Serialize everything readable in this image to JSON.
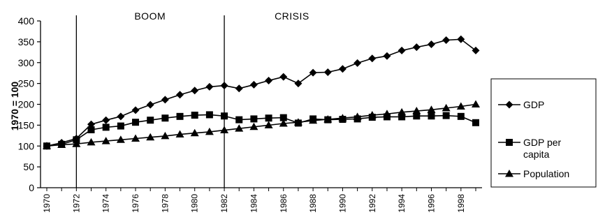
{
  "chart_data": {
    "type": "line",
    "ylabel": "1970 = 100",
    "xlabel": "",
    "ylim": [
      0,
      400
    ],
    "yticks": [
      "0",
      "50",
      "100",
      "150",
      "200",
      "250",
      "300",
      "350",
      "400"
    ],
    "x": [
      1970,
      1971,
      1972,
      1973,
      1974,
      1975,
      1976,
      1977,
      1978,
      1979,
      1980,
      1981,
      1982,
      1983,
      1984,
      1985,
      1986,
      1987,
      1988,
      1989,
      1990,
      1991,
      1992,
      1993,
      1994,
      1995,
      1996,
      1997,
      1998,
      1999
    ],
    "xticks": [
      "1970",
      "1972",
      "1974",
      "1976",
      "1978",
      "1980",
      "1982",
      "1984",
      "1986",
      "1988",
      "1990",
      "1992",
      "1994",
      "1996",
      "1998"
    ],
    "grid": false,
    "legend_position": "right",
    "series": [
      {
        "name": "GDP",
        "marker": "diamond",
        "values": [
          100,
          108,
          118,
          152,
          162,
          171,
          186,
          199,
          211,
          223,
          233,
          242,
          245,
          238,
          247,
          257,
          266,
          250,
          276,
          277,
          285,
          299,
          310,
          316,
          329,
          337,
          344,
          354,
          356,
          329
        ]
      },
      {
        "name": "GDP per capita",
        "marker": "square",
        "values": [
          100,
          104,
          115,
          139,
          145,
          148,
          157,
          162,
          167,
          171,
          174,
          175,
          172,
          163,
          165,
          167,
          168,
          155,
          165,
          163,
          164,
          165,
          169,
          170,
          170,
          172,
          172,
          173,
          171,
          156
        ]
      },
      {
        "name": "Population",
        "marker": "triangle",
        "values": [
          100,
          103,
          105,
          109,
          112,
          115,
          118,
          121,
          124,
          128,
          131,
          134,
          138,
          142,
          146,
          150,
          154,
          157,
          161,
          164,
          167,
          170,
          174,
          177,
          181,
          184,
          187,
          191,
          195,
          200
        ]
      }
    ],
    "periods": [
      {
        "label": "BOOM",
        "start_year": 1972
      },
      {
        "label": "CRISIS",
        "start_year": 1982
      }
    ]
  }
}
